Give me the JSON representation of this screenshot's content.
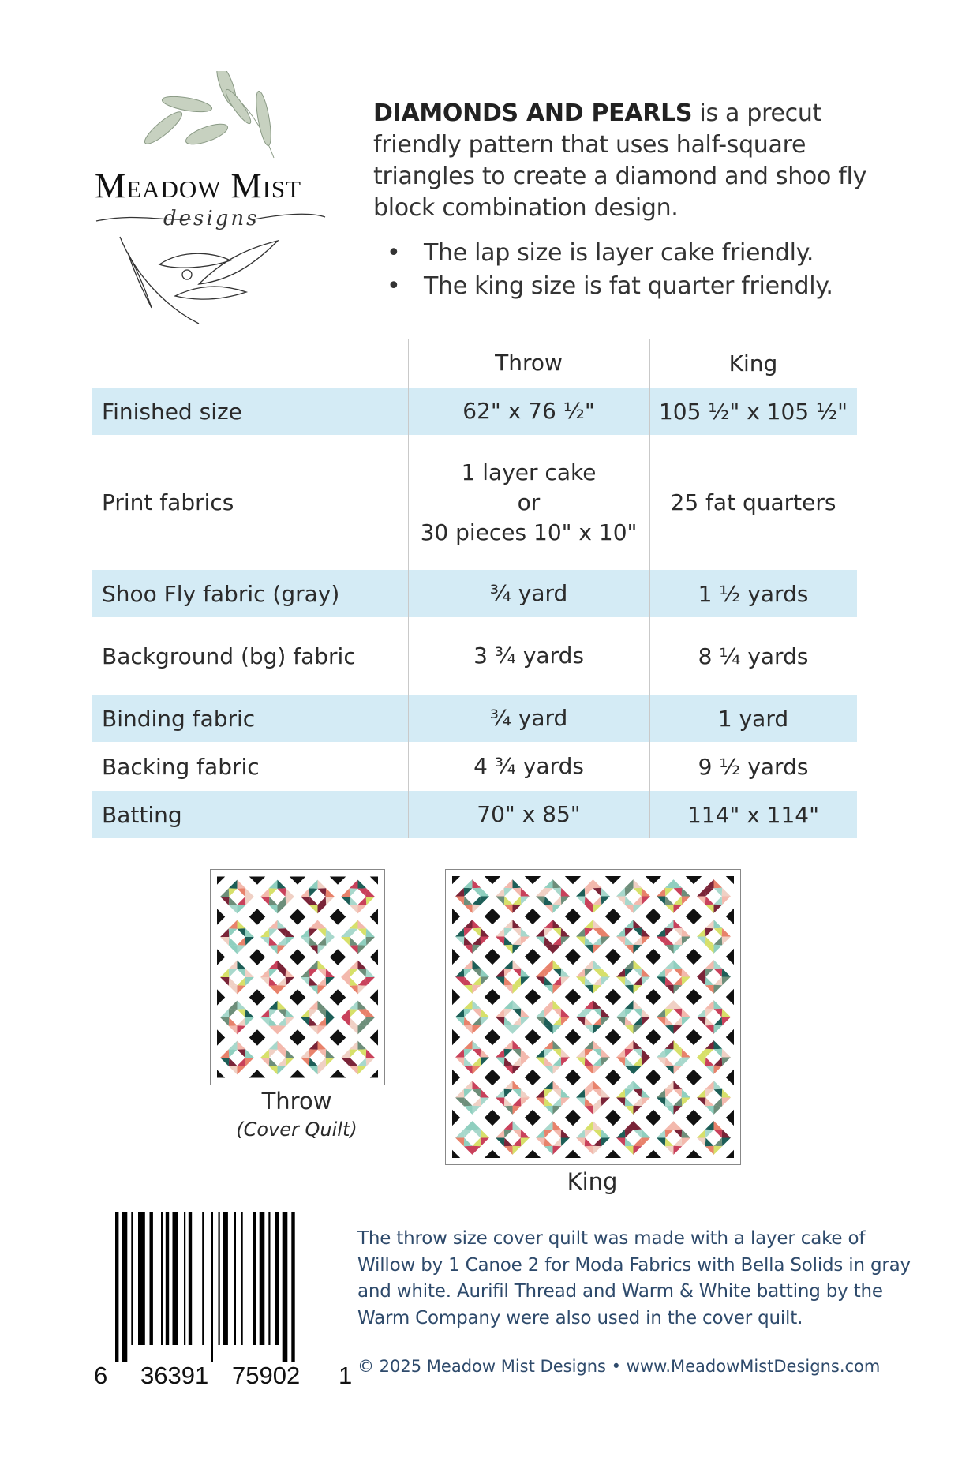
{
  "logo": {
    "name": "Meadow Mist",
    "sub": "designs"
  },
  "intro": {
    "title": "DIAMONDS AND PEARLS",
    "text": " is a precut friendly pattern that uses half-square triangles to create a diamond and shoo fly block combination design.",
    "bullets": [
      "The lap size is layer cake friendly.",
      "The king size is fat quarter friendly."
    ]
  },
  "table": {
    "headers": [
      "",
      "Throw",
      "King"
    ],
    "rows": [
      {
        "label": "Finished size",
        "throw": "62\" x 76 ½\"",
        "king": "105 ½\" x 105 ½\""
      },
      {
        "label": "Print fabrics",
        "throw_lines": [
          "1 layer cake",
          "or",
          "30 pieces 10\" x 10\""
        ],
        "king": "25 fat quarters"
      },
      {
        "label": "Shoo Fly fabric (gray)",
        "throw": "¾ yard",
        "king": "1 ½ yards"
      },
      {
        "label": "Background (bg) fabric",
        "throw": "3 ¾ yards",
        "king": "8 ¼ yards"
      },
      {
        "label": "Binding fabric",
        "throw": "¾ yard",
        "king": "1 yard"
      },
      {
        "label": "Backing fabric",
        "throw": "4 ¾ yards",
        "king": "9 ½ yards"
      },
      {
        "label": "Batting",
        "throw": "70\" x 85\"",
        "king": "114\" x 114\""
      }
    ],
    "highlight_color": "#d4ebf5"
  },
  "quilts": {
    "throw": {
      "label": "Throw",
      "caption": "(Cover Quilt)",
      "cols": 4,
      "rows": 5
    },
    "king": {
      "label": "King",
      "cols": 7,
      "rows": 7
    },
    "palette": [
      "#c9415b",
      "#e8826b",
      "#f3b9ad",
      "#8fcfbf",
      "#1d5e57",
      "#d7e06a",
      "#6d8e7a",
      "#7a2438",
      "#a8d8cc",
      "#f0d0c4"
    ]
  },
  "barcode": {
    "digits": [
      "6",
      "36391",
      "75902",
      "1"
    ]
  },
  "note": "The throw size cover quilt was made with a layer cake of Willow by 1 Canoe 2 for Moda Fabrics with Bella Solids in gray and white.  Aurifil Thread and Warm & White batting by the Warm Company were also used in the cover quilt.",
  "copyright": "© 2025 Meadow Mist Designs • www.MeadowMistDesigns.com"
}
